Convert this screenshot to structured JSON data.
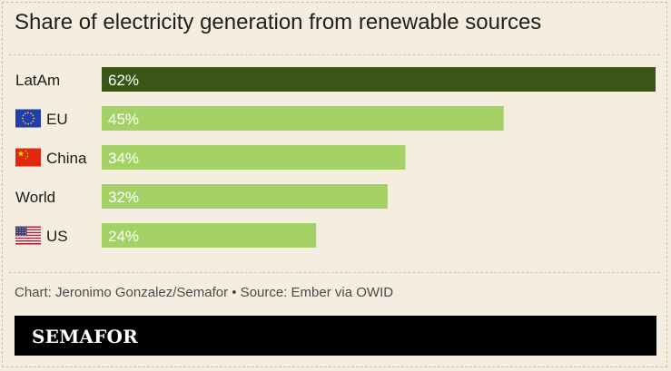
{
  "title": "Share of electricity generation from renewable sources",
  "footer": "Chart: Jeronimo Gonzalez/Semafor • Source: Ember via OWID",
  "brand": "SEMAFOR",
  "colors": {
    "background": "#f5eee0",
    "highlight_bar": "#3a5518",
    "bar": "#a3d165",
    "bar_label": "#ffffff"
  },
  "chart_data": {
    "type": "bar",
    "orientation": "horizontal",
    "categories": [
      "LatAm",
      "EU",
      "China",
      "World",
      "US"
    ],
    "icons": [
      "",
      "eu-flag-icon",
      "china-flag-icon",
      "",
      "us-flag-icon"
    ],
    "values": [
      62,
      45,
      34,
      32,
      24
    ],
    "value_labels": [
      "62%",
      "45%",
      "34%",
      "32%",
      "24%"
    ],
    "highlight": "LatAm",
    "xlim": [
      0,
      62
    ],
    "grid": false,
    "legend": "none"
  }
}
